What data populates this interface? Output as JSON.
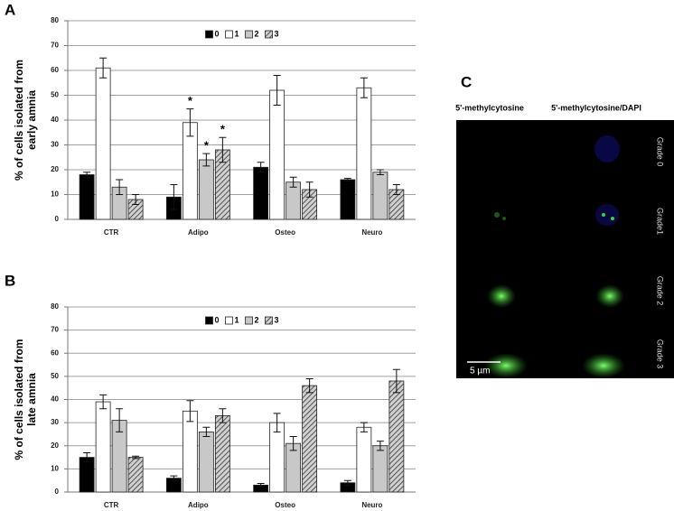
{
  "chart_data": [
    {
      "type": "bar",
      "panel": "A",
      "ylabel": [
        "% of cells isolated from",
        "early amnia"
      ],
      "categories": [
        "CTR",
        "Adipo",
        "Osteo",
        "Neuro"
      ],
      "ylim": [
        0,
        80
      ],
      "yticks": [
        0,
        10,
        20,
        30,
        40,
        50,
        60,
        70,
        80
      ],
      "grid": true,
      "legend": "top",
      "series": [
        {
          "name": "0",
          "color": "#000000",
          "values": [
            18,
            9,
            21,
            16
          ],
          "errors": [
            1,
            5,
            2,
            0.5
          ]
        },
        {
          "name": "1",
          "color": "#ffffff",
          "values": [
            61,
            39,
            52,
            53
          ],
          "errors": [
            4,
            5.5,
            6,
            4
          ],
          "labels": [
            null,
            "*",
            null,
            null
          ]
        },
        {
          "name": "2",
          "color": "#c8c8c8",
          "values": [
            13,
            24,
            15,
            19
          ],
          "errors": [
            3,
            2.5,
            2,
            1
          ],
          "labels": [
            null,
            "*",
            null,
            null
          ]
        },
        {
          "name": "3",
          "color": "#bdbdbd",
          "hatch": true,
          "values": [
            8,
            28,
            12,
            12
          ],
          "errors": [
            2,
            5,
            3,
            2
          ],
          "labels": [
            null,
            "*",
            null,
            null
          ]
        }
      ]
    },
    {
      "type": "bar",
      "panel": "B",
      "ylabel": [
        "% of cells isolated from",
        "late amnia"
      ],
      "categories": [
        "CTR",
        "Adipo",
        "Osteo",
        "Neuro"
      ],
      "ylim": [
        0,
        80
      ],
      "yticks": [
        0,
        10,
        20,
        30,
        40,
        50,
        60,
        70,
        80
      ],
      "grid": true,
      "legend": "top",
      "series": [
        {
          "name": "0",
          "color": "#000000",
          "values": [
            15,
            6,
            3,
            4
          ],
          "errors": [
            2,
            1,
            0.7,
            1
          ]
        },
        {
          "name": "1",
          "color": "#ffffff",
          "values": [
            39,
            35,
            30,
            28
          ],
          "errors": [
            3,
            4.5,
            4,
            2
          ]
        },
        {
          "name": "2",
          "color": "#c8c8c8",
          "values": [
            31,
            26,
            21,
            20
          ],
          "errors": [
            5,
            2,
            3,
            2
          ]
        },
        {
          "name": "3",
          "color": "#bdbdbd",
          "hatch": true,
          "values": [
            15,
            33,
            46,
            48
          ],
          "errors": [
            0.5,
            3,
            3,
            5
          ]
        }
      ]
    }
  ],
  "image_panel": {
    "panel": "C",
    "columns": [
      "5'-methylcytosine",
      "5'-methylcytosine/DAPI"
    ],
    "rows": [
      "Grade 0",
      "Grade1",
      "Grade 2",
      "Grade 3"
    ],
    "scale_bar": "5 µm"
  }
}
